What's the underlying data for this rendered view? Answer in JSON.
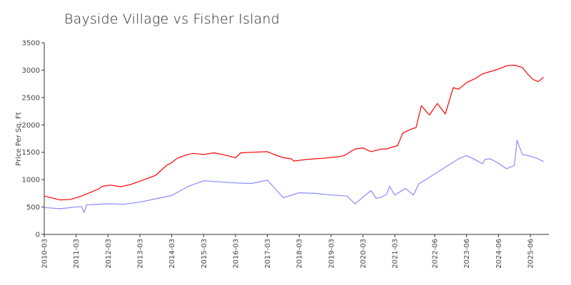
{
  "chart_data": {
    "type": "line",
    "title": "Bayside Village vs Fisher Island",
    "xlabel": "",
    "ylabel": "Price Per Sq. Ft",
    "ylim": [
      0,
      3500
    ],
    "yticks": [
      0,
      500,
      1000,
      1500,
      2000,
      2500,
      3000,
      3500
    ],
    "xlim": [
      "2010-03",
      "2026-01"
    ],
    "xticks": [
      "2010-03",
      "2011-03",
      "2012-03",
      "2013-03",
      "2014-03",
      "2015-03",
      "2016-03",
      "2017-03",
      "2018-03",
      "2019-03",
      "2020-03",
      "2021-03",
      "2022-06",
      "2023-06",
      "2024-06",
      "2025-06"
    ],
    "grid": false,
    "legend": "none",
    "series": [
      {
        "color": "#ff0000",
        "x": [
          "2010-03",
          "2010-09",
          "2011-01",
          "2011-05",
          "2011-09",
          "2011-11",
          "2012-01",
          "2012-04",
          "2012-08",
          "2012-12",
          "2013-04",
          "2013-09",
          "2014-01",
          "2014-03",
          "2014-05",
          "2014-09",
          "2014-11",
          "2015-03",
          "2015-07",
          "2015-11",
          "2016-03",
          "2016-05",
          "2016-09",
          "2017-03",
          "2017-05",
          "2017-09",
          "2017-12",
          "2018-01",
          "2018-06",
          "2018-09",
          "2018-12",
          "2019-06",
          "2019-08",
          "2019-12",
          "2020-03",
          "2020-06",
          "2020-10",
          "2020-12",
          "2021-01",
          "2021-04",
          "2021-06",
          "2021-09",
          "2021-11",
          "2022-01",
          "2022-04",
          "2022-07",
          "2022-10",
          "2023-01",
          "2023-03",
          "2023-06",
          "2023-09",
          "2023-12",
          "2024-02",
          "2024-06",
          "2024-09",
          "2024-12",
          "2025-03",
          "2025-05",
          "2025-07",
          "2025-09",
          "2025-11"
        ],
        "values": [
          700,
          630,
          640,
          700,
          780,
          820,
          880,
          900,
          870,
          920,
          990,
          1080,
          1260,
          1310,
          1390,
          1460,
          1480,
          1460,
          1490,
          1450,
          1400,
          1490,
          1500,
          1510,
          1470,
          1400,
          1380,
          1340,
          1370,
          1380,
          1390,
          1420,
          1440,
          1560,
          1580,
          1510,
          1560,
          1560,
          1580,
          1620,
          1850,
          1920,
          1950,
          2350,
          2180,
          2390,
          2200,
          2680,
          2650,
          2770,
          2840,
          2930,
          2960,
          3020,
          3080,
          3090,
          3050,
          2930,
          2830,
          2790,
          2870
        ]
      },
      {
        "color": "#8a8aff",
        "x": [
          "2010-03",
          "2010-09",
          "2011-05",
          "2011-06",
          "2011-07",
          "2012-03",
          "2012-09",
          "2013-03",
          "2013-09",
          "2014-03",
          "2014-09",
          "2015-03",
          "2015-09",
          "2016-03",
          "2016-09",
          "2017-03",
          "2017-09",
          "2018-03",
          "2018-09",
          "2019-03",
          "2019-09",
          "2019-12",
          "2020-06",
          "2020-08",
          "2020-10",
          "2020-12",
          "2021-01",
          "2021-03",
          "2021-06",
          "2021-07",
          "2021-10",
          "2021-12",
          "2023-03",
          "2023-06",
          "2023-09",
          "2023-12",
          "2024-01",
          "2024-03",
          "2024-06",
          "2024-09",
          "2024-12",
          "2025-01",
          "2025-03",
          "2025-06",
          "2025-09",
          "2025-11"
        ],
        "values": [
          490,
          470,
          510,
          400,
          540,
          560,
          550,
          590,
          650,
          710,
          870,
          980,
          960,
          940,
          930,
          990,
          670,
          760,
          750,
          720,
          700,
          560,
          800,
          660,
          680,
          740,
          880,
          720,
          810,
          840,
          720,
          920,
          1380,
          1440,
          1370,
          1290,
          1370,
          1380,
          1300,
          1200,
          1260,
          1720,
          1460,
          1430,
          1380,
          1330
        ]
      }
    ]
  }
}
